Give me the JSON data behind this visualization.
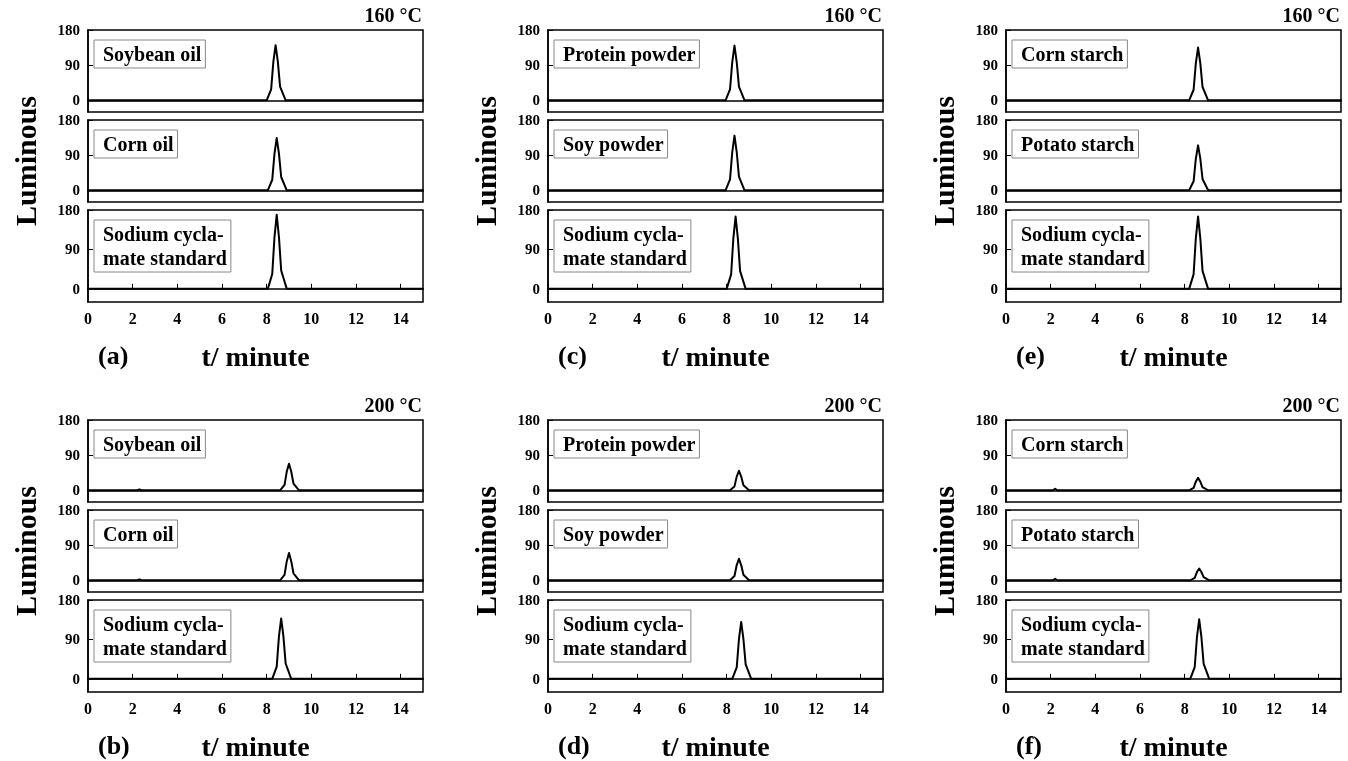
{
  "chart_data": [
    {
      "type": "line",
      "title": "160 °C",
      "x": [
        0,
        8,
        8.2,
        8.3,
        8.4,
        8.5,
        8.6,
        8.85,
        15
      ],
      "series": [
        {
          "name": "Soybean oil",
          "color": "#000000",
          "values": [
            0,
            0,
            28,
            99,
            141,
            99,
            35,
            0,
            0
          ]
        }
      ],
      "xlim": [
        0,
        15
      ],
      "xticks": [
        0,
        2,
        4,
        6,
        8,
        10,
        12,
        14
      ],
      "ylim": [
        -30,
        180
      ],
      "yticks": [
        0,
        90,
        180
      ],
      "legend": "top left",
      "tick_labels": "y"
    },
    {
      "type": "line",
      "ylabel": "Luminous",
      "x": [
        0,
        8.05,
        8.25,
        8.35,
        8.45,
        8.55,
        8.65,
        8.9,
        15
      ],
      "series": [
        {
          "name": "Corn oil",
          "color": "#000000",
          "values": [
            0,
            0,
            27,
            94,
            134,
            94,
            34,
            0,
            0
          ]
        }
      ],
      "xlim": [
        0,
        15
      ],
      "xticks": [
        0,
        2,
        4,
        6,
        8,
        10,
        12,
        14
      ],
      "ylim": [
        -30,
        180
      ],
      "yticks": [
        0,
        90,
        180
      ],
      "legend": "top left",
      "tick_labels": "y"
    },
    {
      "type": "line",
      "xlabel": "t/ minute",
      "annotations": [
        "(a)"
      ],
      "x": [
        0,
        8.05,
        8.25,
        8.35,
        8.45,
        8.55,
        8.65,
        8.9,
        15
      ],
      "series": [
        {
          "name": "Sodium cycla-\nmate standard",
          "color": "#000000",
          "values": [
            0,
            0,
            34,
            118,
            169,
            118,
            42,
            0,
            0
          ]
        }
      ],
      "xlim": [
        0,
        15
      ],
      "xticks": [
        0,
        2,
        4,
        6,
        8,
        10,
        12,
        14
      ],
      "ylim": [
        -30,
        180
      ],
      "yticks": [
        0,
        90,
        180
      ],
      "legend": "top left"
    },
    {
      "type": "line",
      "title": "160 °C",
      "x": [
        0,
        7.95,
        8.15,
        8.25,
        8.35,
        8.45,
        8.55,
        8.8,
        15
      ],
      "series": [
        {
          "name": "Protein powder",
          "color": "#000000",
          "values": [
            0,
            0,
            28,
            98,
            140,
            98,
            35,
            0,
            0
          ]
        }
      ],
      "xlim": [
        0,
        15
      ],
      "xticks": [
        0,
        2,
        4,
        6,
        8,
        10,
        12,
        14
      ],
      "ylim": [
        -30,
        180
      ],
      "yticks": [
        0,
        90,
        180
      ],
      "legend": "top left",
      "tick_labels": "y"
    },
    {
      "type": "line",
      "ylabel": "Luminous",
      "x": [
        0,
        7.95,
        8.15,
        8.25,
        8.35,
        8.45,
        8.55,
        8.8,
        15
      ],
      "series": [
        {
          "name": "Soy powder",
          "color": "#000000",
          "values": [
            0,
            0,
            28,
            98,
            140,
            98,
            35,
            0,
            0
          ]
        }
      ],
      "xlim": [
        0,
        15
      ],
      "xticks": [
        0,
        2,
        4,
        6,
        8,
        10,
        12,
        14
      ],
      "ylim": [
        -30,
        180
      ],
      "yticks": [
        0,
        90,
        180
      ],
      "legend": "top left",
      "tick_labels": "y"
    },
    {
      "type": "line",
      "xlabel": "t/ minute",
      "annotations": [
        "(c)"
      ],
      "x": [
        0,
        8,
        8.2,
        8.3,
        8.4,
        8.5,
        8.6,
        8.85,
        15
      ],
      "series": [
        {
          "name": "Sodium cycla-\nmate standard",
          "color": "#000000",
          "values": [
            0,
            0,
            33,
            116,
            165,
            116,
            41,
            0,
            0
          ]
        }
      ],
      "xlim": [
        0,
        15
      ],
      "xticks": [
        0,
        2,
        4,
        6,
        8,
        10,
        12,
        14
      ],
      "ylim": [
        -30,
        180
      ],
      "yticks": [
        0,
        90,
        180
      ],
      "legend": "top left"
    },
    {
      "type": "line",
      "title": "160 °C",
      "x": [
        0,
        8.2,
        8.4,
        8.5,
        8.6,
        8.7,
        8.8,
        9.05,
        15
      ],
      "series": [
        {
          "name": "Corn starch",
          "color": "#000000",
          "values": [
            0,
            0,
            27,
            95,
            135,
            95,
            34,
            0,
            0
          ]
        }
      ],
      "xlim": [
        0,
        15
      ],
      "xticks": [
        0,
        2,
        4,
        6,
        8,
        10,
        12,
        14
      ],
      "ylim": [
        -30,
        180
      ],
      "yticks": [
        0,
        90,
        180
      ],
      "legend": "top left",
      "tick_labels": "y"
    },
    {
      "type": "line",
      "ylabel": "Luminous",
      "x": [
        0,
        8.2,
        8.4,
        8.5,
        8.6,
        8.7,
        8.8,
        9.05,
        15
      ],
      "series": [
        {
          "name": "Potato starch",
          "color": "#000000",
          "values": [
            0,
            0,
            23,
            81,
            115,
            81,
            29,
            0,
            0
          ]
        }
      ],
      "xlim": [
        0,
        15
      ],
      "xticks": [
        0,
        2,
        4,
        6,
        8,
        10,
        12,
        14
      ],
      "ylim": [
        -30,
        180
      ],
      "yticks": [
        0,
        90,
        180
      ],
      "legend": "top left",
      "tick_labels": "y"
    },
    {
      "type": "line",
      "xlabel": "t/ minute",
      "annotations": [
        "(e)"
      ],
      "x": [
        0,
        8.2,
        8.4,
        8.5,
        8.6,
        8.7,
        8.8,
        9.05,
        15
      ],
      "series": [
        {
          "name": "Sodium cycla-\nmate standard",
          "color": "#000000",
          "values": [
            0,
            0,
            33,
            116,
            165,
            116,
            41,
            0,
            0
          ]
        }
      ],
      "xlim": [
        0,
        15
      ],
      "xticks": [
        0,
        2,
        4,
        6,
        8,
        10,
        12,
        14
      ],
      "ylim": [
        -30,
        180
      ],
      "yticks": [
        0,
        90,
        180
      ],
      "legend": "top left"
    },
    {
      "type": "line",
      "title": "200 °C",
      "x": [
        0,
        2.2,
        2.3,
        2.4,
        8.6,
        8.8,
        8.9,
        9,
        9.1,
        9.2,
        9.45,
        15
      ],
      "series": [
        {
          "name": "Soybean oil",
          "color": "#000000",
          "values": [
            0,
            0,
            2,
            0,
            0,
            14,
            48,
            68,
            48,
            17,
            0,
            0
          ]
        }
      ],
      "xlim": [
        0,
        15
      ],
      "xticks": [
        0,
        2,
        4,
        6,
        8,
        10,
        12,
        14
      ],
      "ylim": [
        -30,
        180
      ],
      "yticks": [
        0,
        90,
        180
      ],
      "legend": "top left",
      "tick_labels": "y"
    },
    {
      "type": "line",
      "ylabel": "Luminous",
      "x": [
        0,
        2.2,
        2.3,
        2.4,
        8.6,
        8.8,
        8.9,
        9,
        9.1,
        9.2,
        9.45,
        15
      ],
      "series": [
        {
          "name": "Corn oil",
          "color": "#000000",
          "values": [
            0,
            0,
            2,
            0,
            0,
            14,
            49,
            70,
            49,
            18,
            0,
            0
          ]
        }
      ],
      "xlim": [
        0,
        15
      ],
      "xticks": [
        0,
        2,
        4,
        6,
        8,
        10,
        12,
        14
      ],
      "ylim": [
        -30,
        180
      ],
      "yticks": [
        0,
        90,
        180
      ],
      "legend": "top left",
      "tick_labels": "y"
    },
    {
      "type": "line",
      "xlabel": "t/ minute",
      "annotations": [
        "(b)"
      ],
      "x": [
        0,
        8.25,
        8.45,
        8.55,
        8.65,
        8.75,
        8.85,
        9.1,
        15
      ],
      "series": [
        {
          "name": "Sodium cycla-\nmate standard",
          "color": "#000000",
          "values": [
            0,
            0,
            28,
            97,
            138,
            97,
            35,
            0,
            0
          ]
        }
      ],
      "xlim": [
        0,
        15
      ],
      "xticks": [
        0,
        2,
        4,
        6,
        8,
        10,
        12,
        14
      ],
      "ylim": [
        -30,
        180
      ],
      "yticks": [
        0,
        90,
        180
      ],
      "legend": "top left"
    },
    {
      "type": "line",
      "title": "200 °C",
      "x": [
        0,
        8.15,
        8.35,
        8.45,
        8.55,
        8.65,
        8.75,
        9,
        15
      ],
      "series": [
        {
          "name": "Protein powder",
          "color": "#000000",
          "values": [
            0,
            0,
            10,
            35,
            50,
            35,
            13,
            0,
            0
          ]
        }
      ],
      "xlim": [
        0,
        15
      ],
      "xticks": [
        0,
        2,
        4,
        6,
        8,
        10,
        12,
        14
      ],
      "ylim": [
        -30,
        180
      ],
      "yticks": [
        0,
        90,
        180
      ],
      "legend": "top left",
      "tick_labels": "y"
    },
    {
      "type": "line",
      "ylabel": "Luminous",
      "x": [
        0,
        8.15,
        8.35,
        8.45,
        8.55,
        8.65,
        8.75,
        9,
        15
      ],
      "series": [
        {
          "name": "Soy powder",
          "color": "#000000",
          "values": [
            0,
            0,
            11,
            39,
            55,
            39,
            14,
            0,
            0
          ]
        }
      ],
      "xlim": [
        0,
        15
      ],
      "xticks": [
        0,
        2,
        4,
        6,
        8,
        10,
        12,
        14
      ],
      "ylim": [
        -30,
        180
      ],
      "yticks": [
        0,
        90,
        180
      ],
      "legend": "top left",
      "tick_labels": "y"
    },
    {
      "type": "line",
      "xlabel": "t/ minute",
      "annotations": [
        "(d)"
      ],
      "x": [
        0,
        8.25,
        8.45,
        8.55,
        8.65,
        8.75,
        8.85,
        9.1,
        15
      ],
      "series": [
        {
          "name": "Sodium cycla-\nmate standard",
          "color": "#000000",
          "values": [
            0,
            0,
            26,
            91,
            130,
            91,
            33,
            0,
            0
          ]
        }
      ],
      "xlim": [
        0,
        15
      ],
      "xticks": [
        0,
        2,
        4,
        6,
        8,
        10,
        12,
        14
      ],
      "ylim": [
        -30,
        180
      ],
      "yticks": [
        0,
        90,
        180
      ],
      "legend": "top left"
    },
    {
      "type": "line",
      "title": "200 °C",
      "x": [
        0,
        2.1,
        2.2,
        2.3,
        8.2,
        8.4,
        8.5,
        8.6,
        8.7,
        8.8,
        9.05,
        15
      ],
      "series": [
        {
          "name": "Corn starch",
          "color": "#000000",
          "values": [
            0,
            0,
            4,
            0,
            0,
            6,
            22,
            32,
            22,
            8,
            0,
            0
          ]
        }
      ],
      "xlim": [
        0,
        15
      ],
      "xticks": [
        0,
        2,
        4,
        6,
        8,
        10,
        12,
        14
      ],
      "ylim": [
        -30,
        180
      ],
      "yticks": [
        0,
        90,
        180
      ],
      "legend": "top left",
      "tick_labels": "y"
    },
    {
      "type": "line",
      "ylabel": "Luminous",
      "x": [
        0,
        2.1,
        2.2,
        2.3,
        8.25,
        8.45,
        8.55,
        8.65,
        8.75,
        8.85,
        9.1,
        15
      ],
      "series": [
        {
          "name": "Potato starch",
          "color": "#000000",
          "values": [
            0,
            0,
            4,
            0,
            0,
            6,
            21,
            30,
            21,
            8,
            0,
            0
          ]
        }
      ],
      "xlim": [
        0,
        15
      ],
      "xticks": [
        0,
        2,
        4,
        6,
        8,
        10,
        12,
        14
      ],
      "ylim": [
        -30,
        180
      ],
      "yticks": [
        0,
        90,
        180
      ],
      "legend": "top left",
      "tick_labels": "y"
    },
    {
      "type": "line",
      "xlabel": "t/ minute",
      "annotations": [
        "(f)"
      ],
      "x": [
        0,
        8.25,
        8.45,
        8.55,
        8.65,
        8.75,
        8.85,
        9.1,
        15
      ],
      "series": [
        {
          "name": "Sodium cycla-\nmate standard",
          "color": "#000000",
          "values": [
            0,
            0,
            27,
            95,
            136,
            95,
            34,
            0,
            0
          ]
        }
      ],
      "xlim": [
        0,
        15
      ],
      "xticks": [
        0,
        2,
        4,
        6,
        8,
        10,
        12,
        14
      ],
      "ylim": [
        -30,
        180
      ],
      "yticks": [
        0,
        90,
        180
      ],
      "legend": "top left"
    }
  ]
}
